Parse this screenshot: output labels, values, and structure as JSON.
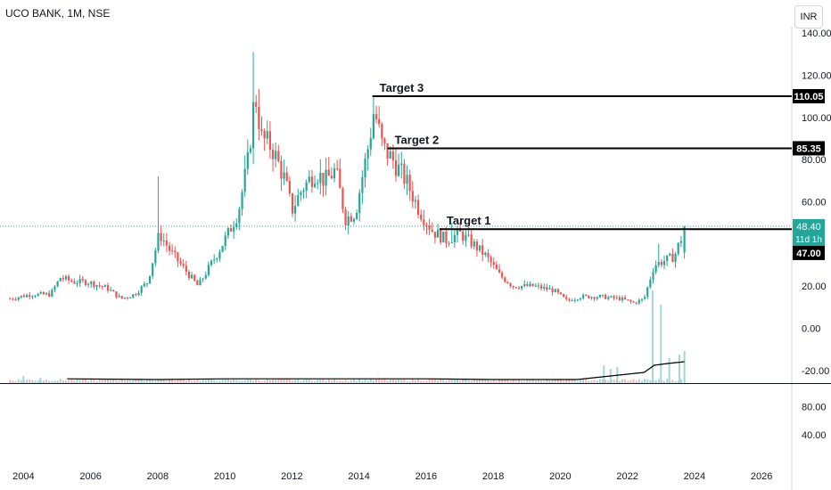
{
  "title": "UCO BANK, 1M, NSE",
  "currency_button": "INR",
  "chart_data": {
    "type": "candlestick",
    "symbol": "UCO BANK",
    "interval": "1M",
    "exchange": "NSE",
    "y_ticks": [
      "140.00",
      "120.00",
      "100.00",
      "80.00",
      "60.00",
      "20.00",
      "0.00",
      "-20.00"
    ],
    "y_tick_values": [
      140,
      120,
      100,
      80,
      60,
      20,
      0,
      -20
    ],
    "ylim": [
      -26,
      143
    ],
    "x_ticks": [
      "2004",
      "2006",
      "2008",
      "2010",
      "2012",
      "2014",
      "2016",
      "2018",
      "2020",
      "2022",
      "2024",
      "2026"
    ],
    "x_tick_years": [
      2004,
      2006,
      2008,
      2010,
      2012,
      2014,
      2016,
      2018,
      2020,
      2022,
      2024,
      2026
    ],
    "xlim": [
      2003.3,
      2026.9
    ],
    "indicator_y_ticks": [
      "80.00",
      "40.00"
    ],
    "indicator_y_tick_values": [
      80,
      40
    ],
    "indicator_ylim": [
      0,
      112
    ],
    "price_anchors": [
      [
        2003.6,
        14
      ],
      [
        2004.2,
        16
      ],
      [
        2004.8,
        16
      ],
      [
        2005.1,
        24
      ],
      [
        2005.5,
        22
      ],
      [
        2005.9,
        22
      ],
      [
        2006.5,
        19
      ],
      [
        2006.9,
        14
      ],
      [
        2007.3,
        16
      ],
      [
        2007.7,
        22
      ],
      [
        2007.9,
        35
      ],
      [
        2008.05,
        45
      ],
      [
        2008.4,
        36
      ],
      [
        2008.8,
        28
      ],
      [
        2009.2,
        20
      ],
      [
        2009.5,
        28
      ],
      [
        2009.8,
        36
      ],
      [
        2010.1,
        45
      ],
      [
        2010.4,
        55
      ],
      [
        2010.7,
        80
      ],
      [
        2010.9,
        112
      ],
      [
        2011.1,
        90
      ],
      [
        2011.4,
        86
      ],
      [
        2011.8,
        70
      ],
      [
        2012.0,
        56
      ],
      [
        2012.3,
        66
      ],
      [
        2012.7,
        74
      ],
      [
        2013.0,
        70
      ],
      [
        2013.3,
        75
      ],
      [
        2013.6,
        52
      ],
      [
        2013.9,
        55
      ],
      [
        2014.1,
        72
      ],
      [
        2014.3,
        88
      ],
      [
        2014.45,
        104
      ],
      [
        2014.7,
        86
      ],
      [
        2015.0,
        80
      ],
      [
        2015.4,
        70
      ],
      [
        2015.8,
        56
      ],
      [
        2016.2,
        46
      ],
      [
        2016.6,
        42
      ],
      [
        2017.0,
        45
      ],
      [
        2017.4,
        40
      ],
      [
        2017.8,
        34
      ],
      [
        2018.2,
        25
      ],
      [
        2018.6,
        20
      ],
      [
        2019.2,
        20
      ],
      [
        2019.8,
        18
      ],
      [
        2020.2,
        13
      ],
      [
        2020.6,
        15
      ],
      [
        2021.2,
        15
      ],
      [
        2021.8,
        14
      ],
      [
        2022.2,
        12
      ],
      [
        2022.5,
        14
      ],
      [
        2022.8,
        30
      ],
      [
        2023.1,
        32
      ],
      [
        2023.4,
        34
      ],
      [
        2023.7,
        47
      ]
    ],
    "last_bar": {
      "open": 36,
      "high": 48.4,
      "low": 33,
      "close": 48.4
    },
    "last_price_line": 48.4,
    "annotations": [
      {
        "label": "Target 1",
        "value": 47.0,
        "price_tag": "47.00",
        "x_start": 2016.4
      },
      {
        "label": "Target 2",
        "value": 85.35,
        "price_tag": "85.35",
        "x_start": 2014.85
      },
      {
        "label": "Target 3",
        "value": 110.05,
        "price_tag": "110.05",
        "x_start": 2014.4
      }
    ],
    "last_price_tag": "48.40",
    "countdown_tag": "11d 1h",
    "colors": {
      "up": "#26a69a",
      "down": "#ef5350",
      "last_price": "#26a69a",
      "line": "#000000",
      "grid_text": "#131722"
    },
    "volume_spikes": [
      [
        2022.75,
        0.26
      ],
      [
        2023.0,
        0.22
      ],
      [
        2023.25,
        0.07
      ],
      [
        2023.55,
        0.08
      ],
      [
        2023.7,
        0.09
      ],
      [
        2021.3,
        0.05
      ],
      [
        2021.5,
        0.04
      ],
      [
        2021.7,
        0.045
      ],
      [
        2004.0,
        0.02
      ],
      [
        2004.5,
        0.015
      ]
    ],
    "volume_ma": [
      [
        2005.3,
        0.012
      ],
      [
        2008,
        0.01
      ],
      [
        2010,
        0.012
      ],
      [
        2012,
        0.012
      ],
      [
        2014,
        0.012
      ],
      [
        2016,
        0.012
      ],
      [
        2018,
        0.01
      ],
      [
        2020.5,
        0.01
      ],
      [
        2021.5,
        0.02
      ],
      [
        2022.5,
        0.03
      ],
      [
        2022.8,
        0.05
      ],
      [
        2023.2,
        0.055
      ],
      [
        2023.7,
        0.06
      ]
    ]
  }
}
